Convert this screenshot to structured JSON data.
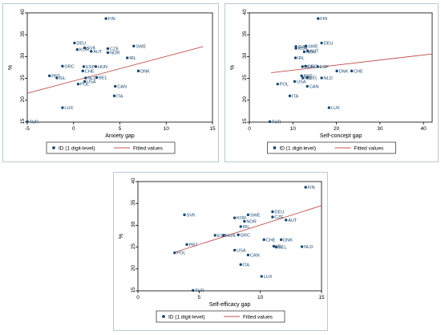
{
  "chart_data": [
    {
      "type": "scatter",
      "xlabel": "Anxiety gap",
      "ylabel": "%",
      "xlim": [
        -5,
        15
      ],
      "ylim": [
        15,
        40
      ],
      "xticks": [
        "-5",
        "0",
        "5",
        "10",
        "15"
      ],
      "yticks": [
        "15",
        "20",
        "25",
        "30",
        "35",
        "40"
      ],
      "legend": {
        "placement": "bottom",
        "scatter_label": "ID (1 digit-level)",
        "line_label": "Fitted values"
      },
      "fit": {
        "x": [
          -5,
          14
        ],
        "y": [
          21.6,
          32.3
        ]
      },
      "points": [
        {
          "label": "FIN",
          "x": 3.5,
          "y": 38.7
        },
        {
          "label": "DEU",
          "x": 0.1,
          "y": 33.1
        },
        {
          "label": "SVK",
          "x": 1.2,
          "y": 32.0
        },
        {
          "label": "KOR",
          "x": 0.4,
          "y": 31.6
        },
        {
          "label": "SWE",
          "x": 6.5,
          "y": 32.4
        },
        {
          "label": "CZE",
          "x": 3.7,
          "y": 31.8
        },
        {
          "label": "AUT",
          "x": 1.9,
          "y": 31.2
        },
        {
          "label": "NOR",
          "x": 3.7,
          "y": 30.9
        },
        {
          "label": "IRL",
          "x": 5.8,
          "y": 29.7
        },
        {
          "label": "GRC",
          "x": -1.2,
          "y": 27.8
        },
        {
          "label": "ESP",
          "x": 1.1,
          "y": 27.7
        },
        {
          "label": "HUN",
          "x": 2.4,
          "y": 27.7
        },
        {
          "label": "DNK",
          "x": 7.0,
          "y": 26.7
        },
        {
          "label": "CHE",
          "x": 1.0,
          "y": 26.7
        },
        {
          "label": "PRT",
          "x": -2.6,
          "y": 25.6
        },
        {
          "label": "ISL",
          "x": -1.8,
          "y": 25.1
        },
        {
          "label": "NLD",
          "x": 1.3,
          "y": 25.1
        },
        {
          "label": "BEL",
          "x": 2.5,
          "y": 25.2
        },
        {
          "label": "USA",
          "x": 1.2,
          "y": 24.3
        },
        {
          "label": "POL",
          "x": 0.5,
          "y": 23.7
        },
        {
          "label": "CAN",
          "x": 4.5,
          "y": 23.2
        },
        {
          "label": "ITA",
          "x": 4.4,
          "y": 21.0
        },
        {
          "label": "LUX",
          "x": -1.2,
          "y": 18.3
        },
        {
          "label": "TUR",
          "x": -5.0,
          "y": 15.1
        }
      ]
    },
    {
      "type": "scatter",
      "xlabel": "Self-concept gap",
      "ylabel": "%",
      "xlim": [
        0,
        42
      ],
      "ylim": [
        15,
        40
      ],
      "xticks": [
        "0",
        "10",
        "20",
        "30",
        "40"
      ],
      "yticks": [
        "15",
        "20",
        "25",
        "30",
        "35",
        "40"
      ],
      "legend": {
        "placement": "bottom",
        "scatter_label": "ID (1 digit-level)",
        "line_label": "Fitted values"
      },
      "fit": {
        "x": [
          5,
          42
        ],
        "y": [
          26.3,
          30.6
        ]
      },
      "points": [
        {
          "label": "FIN",
          "x": 15.8,
          "y": 38.7
        },
        {
          "label": "DEU",
          "x": 16.6,
          "y": 33.1
        },
        {
          "label": "SWE",
          "x": 13.0,
          "y": 32.4
        },
        {
          "label": "KOR",
          "x": 10.7,
          "y": 31.9
        },
        {
          "label": "SVK",
          "x": 10.7,
          "y": 32.3
        },
        {
          "label": "AUT",
          "x": 13.4,
          "y": 31.3
        },
        {
          "label": "NOR",
          "x": 12.6,
          "y": 31.1
        },
        {
          "label": "IRL",
          "x": 10.6,
          "y": 29.7
        },
        {
          "label": "GRC",
          "x": 12.9,
          "y": 27.8
        },
        {
          "label": "ESP",
          "x": 15.7,
          "y": 27.7
        },
        {
          "label": "HUN",
          "x": 12.2,
          "y": 27.7
        },
        {
          "label": "DNK",
          "x": 20.1,
          "y": 26.7
        },
        {
          "label": "CHE",
          "x": 23.5,
          "y": 26.7
        },
        {
          "label": "NLD",
          "x": 16.6,
          "y": 25.1
        },
        {
          "label": "BEL",
          "x": 13.3,
          "y": 25.2
        },
        {
          "label": "PRT",
          "x": 12.0,
          "y": 25.6
        },
        {
          "label": "ISL",
          "x": 12.3,
          "y": 25.1
        },
        {
          "label": "USA",
          "x": 10.4,
          "y": 24.3
        },
        {
          "label": "POL",
          "x": 6.5,
          "y": 23.7
        },
        {
          "label": "CAN",
          "x": 13.3,
          "y": 23.2
        },
        {
          "label": "ITA",
          "x": 9.3,
          "y": 21.0
        },
        {
          "label": "LUX",
          "x": 18.3,
          "y": 18.3
        },
        {
          "label": "TUR",
          "x": 4.7,
          "y": 15.1
        }
      ]
    },
    {
      "type": "scatter",
      "xlabel": "Self-efficacy gap",
      "ylabel": "%",
      "xlim": [
        0,
        15
      ],
      "ylim": [
        15,
        40
      ],
      "xticks": [
        "0",
        "5",
        "10",
        "15"
      ],
      "yticks": [
        "15",
        "20",
        "25",
        "30",
        "35",
        "40"
      ],
      "legend": {
        "placement": "bottom",
        "scatter_label": "ID (1 digit-level)",
        "line_label": "Fitted values"
      },
      "fit": {
        "x": [
          3,
          15
        ],
        "y": [
          23.8,
          34.5
        ]
      },
      "points": [
        {
          "label": "FIN",
          "x": 13.7,
          "y": 38.7
        },
        {
          "label": "DEU",
          "x": 11.0,
          "y": 33.1
        },
        {
          "label": "SWE",
          "x": 9.0,
          "y": 32.4
        },
        {
          "label": "SVK",
          "x": 3.8,
          "y": 32.4
        },
        {
          "label": "KOR",
          "x": 7.9,
          "y": 31.7
        },
        {
          "label": "CZE",
          "x": 11.0,
          "y": 31.9
        },
        {
          "label": "AUT",
          "x": 12.1,
          "y": 31.2
        },
        {
          "label": "NOR",
          "x": 8.7,
          "y": 30.9
        },
        {
          "label": "IRL",
          "x": 8.4,
          "y": 29.7
        },
        {
          "label": "ESP",
          "x": 6.3,
          "y": 27.7
        },
        {
          "label": "HUN",
          "x": 7.0,
          "y": 27.7
        },
        {
          "label": "GRC",
          "x": 8.2,
          "y": 27.8
        },
        {
          "label": "CHE",
          "x": 10.3,
          "y": 26.7
        },
        {
          "label": "DNK",
          "x": 11.7,
          "y": 26.7
        },
        {
          "label": "PRT",
          "x": 4.0,
          "y": 25.6
        },
        {
          "label": "ISL",
          "x": 11.1,
          "y": 25.2
        },
        {
          "label": "BEL",
          "x": 11.3,
          "y": 25.0
        },
        {
          "label": "NLD",
          "x": 13.4,
          "y": 25.1
        },
        {
          "label": "USA",
          "x": 7.9,
          "y": 24.3
        },
        {
          "label": "POL",
          "x": 3.0,
          "y": 23.7
        },
        {
          "label": "CAN",
          "x": 9.0,
          "y": 23.2
        },
        {
          "label": "ITA",
          "x": 8.4,
          "y": 21.0
        },
        {
          "label": "LUX",
          "x": 10.1,
          "y": 18.3
        },
        {
          "label": "TUR",
          "x": 4.5,
          "y": 15.1
        }
      ]
    }
  ],
  "colors": {
    "point": "#1a476f",
    "fit_line": "#c0504d",
    "frame": "#b9cad3",
    "axis": "#000000"
  }
}
